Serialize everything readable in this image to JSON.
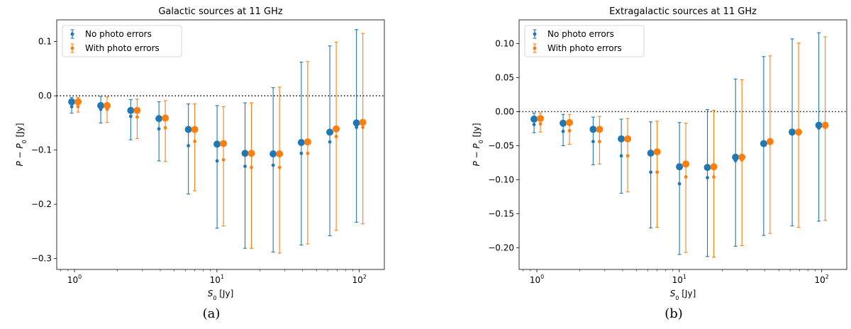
{
  "chart_data": [
    {
      "type": "scatter",
      "title": "Galactic sources at 11 GHz",
      "xlabel": "S_0 [Jy]",
      "ylabel": "P − P_0 [Jy]",
      "xscale": "log",
      "xlim": [
        0.75,
        150
      ],
      "ylim": [
        -0.32,
        0.14
      ],
      "yticks": [
        0.1,
        0.0,
        -0.1,
        -0.2,
        -0.3
      ],
      "ytick_labels": [
        "0.1",
        "0.0",
        "−0.1",
        "−0.2",
        "−0.3"
      ],
      "xtick_labels": [
        "10^0",
        "10^1",
        "10^2"
      ],
      "reference_line": 0.0,
      "caption": "(a)",
      "legend_position": "top-left",
      "x": [
        1.0,
        1.6,
        2.6,
        4.1,
        6.6,
        10.5,
        16.5,
        26.0,
        41.0,
        65.0,
        100.0
      ],
      "series": [
        {
          "name": "No photo errors",
          "color": "#1f77b4",
          "mean": [
            -0.011,
            -0.018,
            -0.027,
            -0.042,
            -0.062,
            -0.089,
            -0.106,
            -0.107,
            -0.086,
            -0.067,
            -0.05
          ],
          "median": [
            -0.02,
            -0.025,
            -0.038,
            -0.061,
            -0.092,
            -0.12,
            -0.13,
            -0.128,
            -0.106,
            -0.085,
            -0.058
          ],
          "err_low": [
            -0.032,
            -0.05,
            -0.081,
            -0.12,
            -0.181,
            -0.244,
            -0.281,
            -0.288,
            -0.275,
            -0.258,
            -0.233
          ],
          "err_high": [
            -0.003,
            -0.001,
            -0.007,
            -0.011,
            -0.015,
            -0.018,
            -0.013,
            0.015,
            0.062,
            0.092,
            0.122
          ]
        },
        {
          "name": "With photo errors",
          "color": "#ff7f0e",
          "mean": [
            -0.011,
            -0.018,
            -0.027,
            -0.041,
            -0.062,
            -0.088,
            -0.106,
            -0.107,
            -0.085,
            -0.061,
            -0.049
          ],
          "median": [
            -0.02,
            -0.025,
            -0.039,
            -0.059,
            -0.084,
            -0.118,
            -0.132,
            -0.132,
            -0.106,
            -0.075,
            -0.058
          ],
          "err_low": [
            -0.03,
            -0.049,
            -0.079,
            -0.121,
            -0.175,
            -0.24,
            -0.281,
            -0.29,
            -0.273,
            -0.248,
            -0.236
          ],
          "err_high": [
            -0.003,
            -0.002,
            -0.006,
            -0.009,
            -0.015,
            -0.02,
            -0.013,
            0.016,
            0.063,
            0.099,
            0.115
          ]
        }
      ]
    },
    {
      "type": "scatter",
      "title": "Extragalactic sources at 11 GHz",
      "xlabel": "S_0 [Jy]",
      "ylabel": "P − P_0 [Jy]",
      "xscale": "log",
      "xlim": [
        0.75,
        150
      ],
      "ylim": [
        -0.232,
        0.135
      ],
      "yticks": [
        0.1,
        0.05,
        0.0,
        -0.05,
        -0.1,
        -0.15,
        -0.2
      ],
      "ytick_labels": [
        "0.10",
        "0.05",
        "0.00",
        "−0.05",
        "−0.10",
        "−0.15",
        "−0.20"
      ],
      "xtick_labels": [
        "10^0",
        "10^1",
        "10^2"
      ],
      "reference_line": 0.0,
      "caption": "(b)",
      "legend_position": "top-left",
      "x": [
        1.0,
        1.6,
        2.6,
        4.1,
        6.6,
        10.5,
        16.5,
        26.0,
        41.0,
        65.0,
        100.0
      ],
      "series": [
        {
          "name": "No photo errors",
          "color": "#1f77b4",
          "mean": [
            -0.011,
            -0.017,
            -0.026,
            -0.04,
            -0.061,
            -0.081,
            -0.082,
            -0.067,
            -0.047,
            -0.03,
            -0.02
          ],
          "median": [
            -0.019,
            -0.029,
            -0.044,
            -0.065,
            -0.089,
            -0.106,
            -0.097,
            -0.072,
            -0.049,
            -0.03,
            -0.024
          ],
          "err_low": [
            -0.031,
            -0.05,
            -0.078,
            -0.12,
            -0.171,
            -0.21,
            -0.213,
            -0.198,
            -0.182,
            -0.168,
            -0.161
          ],
          "err_high": [
            -0.002,
            -0.004,
            -0.008,
            -0.011,
            -0.015,
            -0.016,
            0.003,
            0.048,
            0.081,
            0.107,
            0.116
          ]
        },
        {
          "name": "With photo errors",
          "color": "#ff7f0e",
          "mean": [
            -0.01,
            -0.016,
            -0.026,
            -0.04,
            -0.059,
            -0.077,
            -0.081,
            -0.067,
            -0.044,
            -0.03,
            -0.02
          ],
          "median": [
            -0.018,
            -0.028,
            -0.044,
            -0.065,
            -0.089,
            -0.096,
            -0.096,
            -0.071,
            -0.046,
            -0.033,
            -0.023
          ],
          "err_low": [
            -0.03,
            -0.048,
            -0.077,
            -0.118,
            -0.17,
            -0.207,
            -0.214,
            -0.197,
            -0.179,
            -0.17,
            -0.16
          ],
          "err_high": [
            -0.002,
            -0.004,
            -0.007,
            -0.01,
            -0.014,
            -0.017,
            0.002,
            0.047,
            0.082,
            0.101,
            0.11
          ]
        }
      ]
    }
  ]
}
